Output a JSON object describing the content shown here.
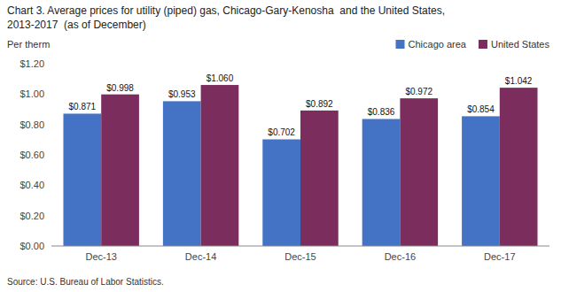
{
  "chart_data": {
    "type": "bar",
    "title": "Chart 3. Average prices for utility (piped) gas, Chicago-Gary-Kenosha  and the United States,",
    "subtitle": "2013-2017  (as of December)",
    "y_label": "Per therm",
    "source": "Source: U.S. Bureau of Labor Statistics.",
    "categories": [
      "Dec-13",
      "Dec-14",
      "Dec-15",
      "Dec-16",
      "Dec-17"
    ],
    "series": [
      {
        "name": "Chicago area",
        "color": "#4472C4",
        "values": [
          0.871,
          0.953,
          0.702,
          0.836,
          0.854
        ],
        "value_labels": [
          "$0.871",
          "$0.953",
          "$0.702",
          "$0.836",
          "$0.854"
        ]
      },
      {
        "name": "United States",
        "color": "#7B2D5E",
        "values": [
          0.998,
          1.06,
          0.892,
          0.972,
          1.042
        ],
        "value_labels": [
          "$0.998",
          "$1.060",
          "$0.892",
          "$0.972",
          "$1.042"
        ]
      }
    ],
    "ylim": [
      0,
      1.2
    ],
    "yticks": [
      {
        "value": 0.0,
        "label": "$0.00"
      },
      {
        "value": 0.2,
        "label": "$0.20"
      },
      {
        "value": 0.4,
        "label": "$0.40"
      },
      {
        "value": 0.6,
        "label": "$0.60"
      },
      {
        "value": 0.8,
        "label": "$0.80"
      },
      {
        "value": 1.0,
        "label": "$1.00"
      },
      {
        "value": 1.2,
        "label": "$1.20"
      }
    ],
    "grid": false,
    "legend": "upper right",
    "data_labels": true
  }
}
